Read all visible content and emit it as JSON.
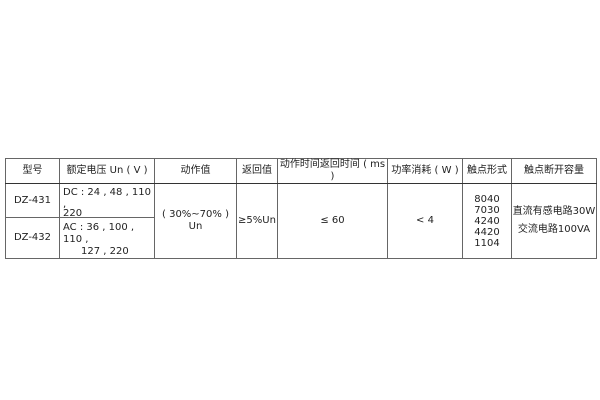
{
  "headers": [
    "型号",
    "额定电压 Un ( V )",
    "动作值",
    "返回值",
    "动作时间返回时间 ( ms )",
    "功率消耗 ( W )",
    "触点形式",
    "触点断开容量"
  ],
  "rows": [
    {
      "model": "DZ-431",
      "voltage_line1": "DC : 24 , 48 , 110 ,",
      "voltage_line2": "220"
    },
    {
      "model": "DZ-432",
      "voltage_line1": "AC : 36 , 100 , 110 ,",
      "voltage_line2": "127 , 220"
    }
  ],
  "shared": {
    "operate_value": "( 30%~70% ) Un",
    "return_value": "≥5%Un",
    "time": "≤ 60",
    "power": "< 4",
    "contacts": [
      "8040",
      "7030",
      "4240",
      "4420",
      "1104"
    ],
    "capacity": [
      "直流有感电路30W",
      "交流电路100VA"
    ]
  }
}
